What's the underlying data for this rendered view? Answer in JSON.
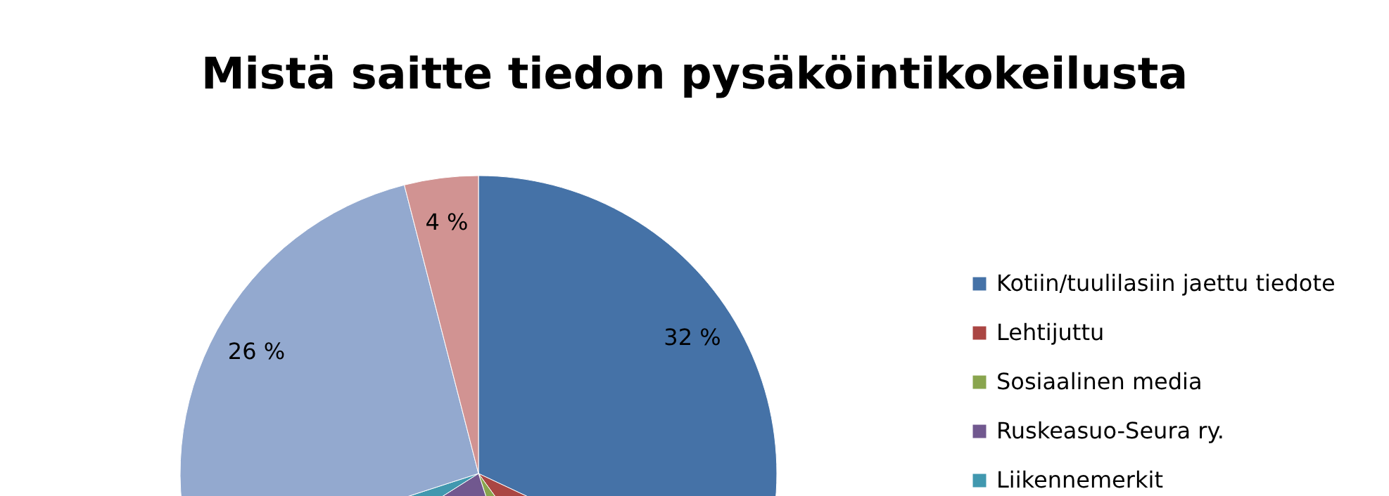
{
  "chart_data": {
    "type": "pie",
    "title": "Mistä saitte tiedon pysäköintikokeilusta",
    "categories": [
      "Kotiin/tuulilasiin jaettu tiedote",
      "Lehtijuttu",
      "Sosiaalinen media",
      "Ruskeasuo-Seura ry.",
      "Liikennemerkit",
      null,
      null
    ],
    "values": [
      32,
      8,
      5,
      21,
      4,
      26,
      4
    ],
    "value_labels": [
      "32 %",
      null,
      null,
      null,
      null,
      "26 %",
      "4 %"
    ],
    "colors": [
      "#4572a7",
      "#aa4643",
      "#89a54e",
      "#71588f",
      "#4198af",
      "#93a9cf",
      "#d19392"
    ],
    "legend": "right"
  }
}
